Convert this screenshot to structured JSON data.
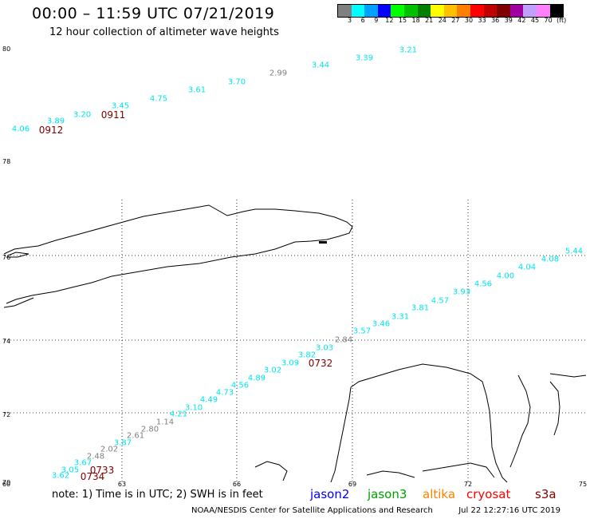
{
  "header": {
    "title": "00:00 – 11:59 UTC 07/21/2019",
    "subtitle": "12 hour collection of altimeter wave heights"
  },
  "colorbar": {
    "colors": [
      "#808080",
      "#00ffff",
      "#00a0ff",
      "#0000ff",
      "#00ff00",
      "#00c000",
      "#008000",
      "#ffff00",
      "#ffc000",
      "#ff8000",
      "#ff0000",
      "#c00000",
      "#800000",
      "#a000a0",
      "#c0a0ff",
      "#ff80ff",
      "#000000"
    ],
    "labels": [
      "3",
      "6",
      "9",
      "12",
      "15",
      "18",
      "21",
      "24",
      "27",
      "30",
      "33",
      "36",
      "39",
      "42",
      "45",
      "70",
      "(ft)"
    ]
  },
  "axes": {
    "lat_labels": [
      "80",
      "78",
      "76",
      "74",
      "72",
      "70"
    ],
    "lon_labels": [
      "60",
      "63",
      "66",
      "69",
      "72",
      "75"
    ]
  },
  "tracks": [
    {
      "time_label": "0912",
      "points": [
        {
          "v": "4.06",
          "c": "cyan"
        },
        {
          "v": "3.89",
          "c": "cyan"
        },
        {
          "v": "3.20",
          "c": "cyan"
        }
      ]
    },
    {
      "time_label": "0911",
      "points": [
        {
          "v": "3.45",
          "c": "cyan"
        },
        {
          "v": "4.75",
          "c": "cyan"
        },
        {
          "v": "3.61",
          "c": "cyan"
        },
        {
          "v": "3.70",
          "c": "cyan"
        },
        {
          "v": "2.99",
          "c": "gray"
        },
        {
          "v": "3.44",
          "c": "cyan"
        },
        {
          "v": "3.39",
          "c": "cyan"
        },
        {
          "v": "3.21",
          "c": "cyan"
        }
      ]
    },
    {
      "time_label": "0732",
      "points": [
        {
          "v": "1.14",
          "c": "gray"
        },
        {
          "v": "4.21",
          "c": "cyan"
        },
        {
          "v": "3.10",
          "c": "cyan"
        },
        {
          "v": "4.49",
          "c": "cyan"
        },
        {
          "v": "4.73",
          "c": "cyan"
        },
        {
          "v": "4.56",
          "c": "cyan"
        },
        {
          "v": "4.89",
          "c": "cyan"
        },
        {
          "v": "3.02",
          "c": "cyan"
        },
        {
          "v": "3.09",
          "c": "cyan"
        },
        {
          "v": "3.82",
          "c": "cyan"
        },
        {
          "v": "3.03",
          "c": "cyan"
        },
        {
          "v": "2.84",
          "c": "gray"
        },
        {
          "v": "3.57",
          "c": "cyan"
        },
        {
          "v": "3.46",
          "c": "cyan"
        },
        {
          "v": "3.31",
          "c": "cyan"
        },
        {
          "v": "3.81",
          "c": "cyan"
        },
        {
          "v": "4.57",
          "c": "cyan"
        },
        {
          "v": "3.93",
          "c": "cyan"
        },
        {
          "v": "4.56",
          "c": "cyan"
        },
        {
          "v": "4.00",
          "c": "cyan"
        },
        {
          "v": "4.04",
          "c": "cyan"
        },
        {
          "v": "4.08",
          "c": "cyan"
        },
        {
          "v": "5.44",
          "c": "cyan"
        }
      ]
    },
    {
      "time_label": "0733",
      "points": [
        {
          "v": "3.87",
          "c": "cyan"
        },
        {
          "v": "2.61",
          "c": "gray"
        },
        {
          "v": "2.80",
          "c": "gray"
        }
      ]
    },
    {
      "time_label": "0734",
      "points": [
        {
          "v": "3.62",
          "c": "cyan"
        },
        {
          "v": "3.05",
          "c": "cyan"
        },
        {
          "v": "3.67",
          "c": "cyan"
        },
        {
          "v": "2.48",
          "c": "gray"
        },
        {
          "v": "2.02",
          "c": "gray"
        }
      ]
    }
  ],
  "legend": {
    "note": "note:  1) Time is in UTC;  2) SWH is in feet",
    "missions": [
      {
        "name": "jason2",
        "color": "#0000ff"
      },
      {
        "name": "jason3",
        "color": "#00a000"
      },
      {
        "name": "altika",
        "color": "#ff8000"
      },
      {
        "name": "cryosat",
        "color": "#ff0000"
      },
      {
        "name": "s3a",
        "color": "#800000"
      }
    ]
  },
  "footer": {
    "credit": "NOAA/NESDIS Center for Satellite Applications and Research",
    "timestamp": "Jul 22 12:27:16 UTC 2019"
  }
}
